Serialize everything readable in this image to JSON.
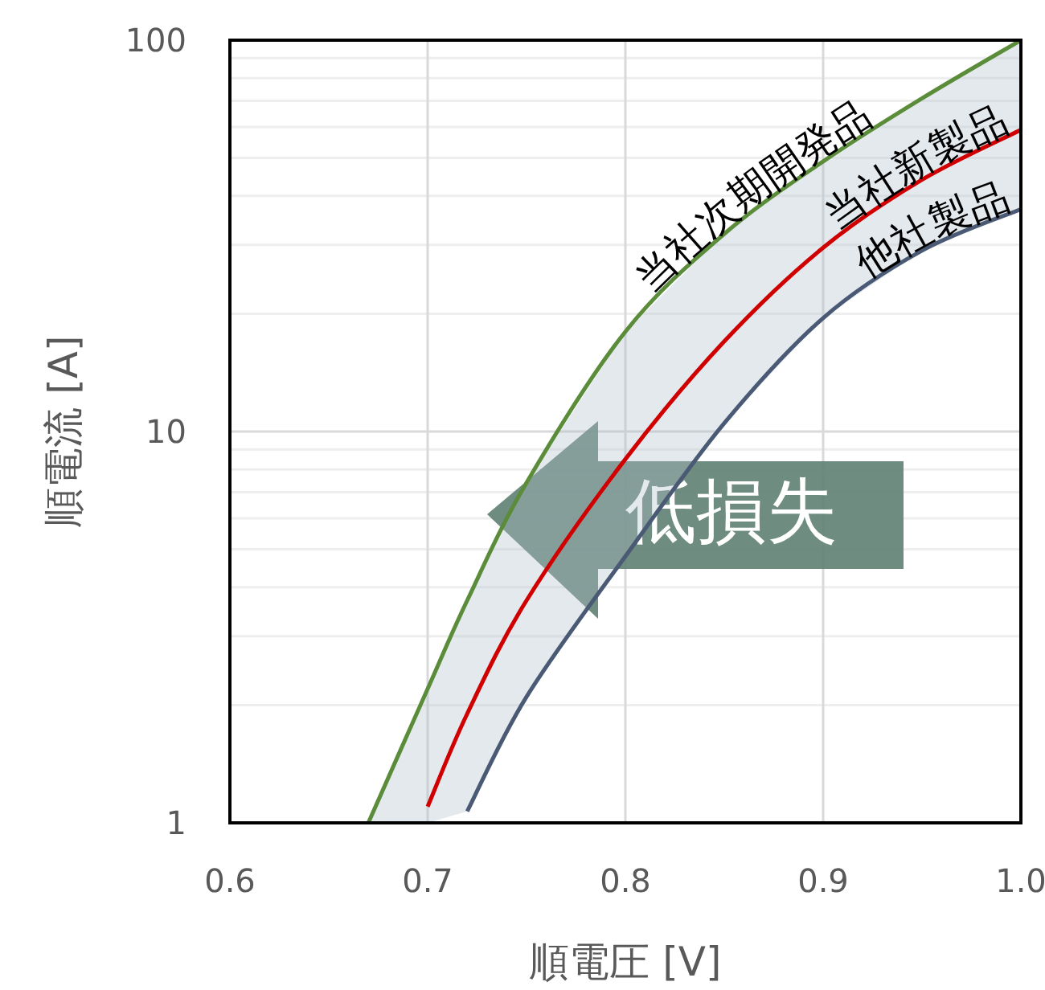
{
  "chart_data": {
    "type": "line",
    "xlabel": "順電圧 [V]",
    "ylabel": "順電流 [A]",
    "log": "y",
    "grid": true,
    "marker": "none",
    "line_style": "solid",
    "x": [
      0.67,
      0.7,
      0.72,
      0.75,
      0.8,
      0.85,
      0.9,
      0.95,
      1.0
    ],
    "xlim": [
      0.6,
      1.0
    ],
    "xticks": [
      0.6,
      0.7,
      0.8,
      0.9,
      {
        "value": 1.0,
        "label": "1.0"
      }
    ],
    "ylim": [
      1,
      100
    ],
    "yticks": [
      1,
      10,
      100
    ],
    "series": [
      {
        "name": "当社次期開発品",
        "color": "#5b8c3a",
        "values": [
          1.0,
          2.2,
          3.7,
          7.4,
          18,
          32,
          49,
          71,
          100
        ]
      },
      {
        "name": "当社新製品",
        "color": "#d00000",
        "values": [
          null,
          1.1,
          1.9,
          3.7,
          8.5,
          17,
          29.5,
          44,
          59
        ],
        "lower": [
          1,
          1,
          1.07,
          2.1,
          4.8,
          10.5,
          19.5,
          29,
          37
        ],
        "upper": [
          1.0,
          2.2,
          3.7,
          7.4,
          18,
          32,
          49,
          71,
          100
        ]
      },
      {
        "name": "他社製品",
        "color": "#4a5a75",
        "values": [
          null,
          null,
          1.07,
          2.1,
          4.8,
          10.5,
          19.5,
          29,
          37
        ]
      }
    ],
    "annotations": [
      "低損失"
    ]
  }
}
